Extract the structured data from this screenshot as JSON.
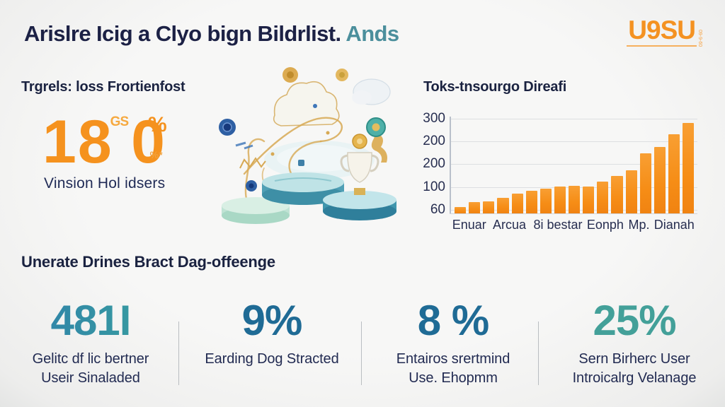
{
  "header": {
    "title_main": "Arislre Icig a Clyo bign Bildrlist.",
    "title_accent": " Ands",
    "logo": "U9SU",
    "logo_side": "09-9-60"
  },
  "left_stat": {
    "label": "Trgrels: loss Frortienfost",
    "value_left": "18",
    "decoration": "GS",
    "value_right": "0",
    "decoration2": "%*",
    "percent": "%",
    "caption": "Vinsion Hol idsers"
  },
  "chart_data": {
    "type": "bar",
    "title": "Toks-tnsourgo Direafi",
    "y_ticks": [
      "300",
      "200",
      "200",
      "100",
      "60"
    ],
    "x_labels": [
      "Enuar",
      "Arcua",
      "8i bestar",
      "Eonph",
      "Mp.",
      "Dianah"
    ],
    "values": [
      20,
      37,
      39,
      49,
      64,
      72,
      80,
      87,
      89,
      86,
      101,
      120,
      137,
      192,
      212,
      252,
      289
    ],
    "ylim": [
      0,
      300
    ],
    "bar_color": "#f7941e",
    "grid": true,
    "legend": false
  },
  "bottom": {
    "heading": "Unerate Drines Bract Dag-offeenge",
    "stats": [
      {
        "value": "481I",
        "color": "gradient",
        "caption_lines": [
          "Gelitc df lic bertner",
          "Useir Sinaladed"
        ]
      },
      {
        "value": "9%",
        "color": "#1f6b95",
        "caption_lines": [
          "Earding Dog Stracted"
        ]
      },
      {
        "value": "8 %",
        "color": "#1f6b95",
        "caption_lines": [
          "Entairos srertmind",
          "Use. Ehopmm"
        ]
      },
      {
        "value": "25%",
        "color": "#43a099",
        "caption_lines": [
          "Sern Birherc User",
          "Introicalrg Velanage"
        ]
      }
    ]
  },
  "colors": {
    "accent_orange": "#f5921e",
    "accent_teal": "#4b8f9c",
    "navy": "#1c2145",
    "stat_blue": "#1f6b95",
    "stat_teal": "#43a099"
  }
}
